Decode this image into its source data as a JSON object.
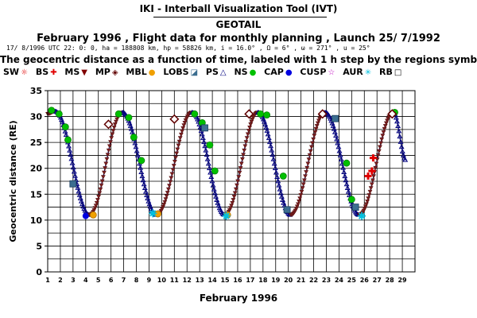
{
  "app_title": "IKI - Interball Visualization Tool (IVT)",
  "satellite": "GEOTAIL",
  "plan_line": "February 1996 ,  Flight data for monthly planning ,   Launch 25/ 7/1992",
  "orbit_line": "17/ 8/1996 UTC 22: 0: 0, ha = 188808 km, hp =  58826 km, i = 16.0° , Ω =   6° , ω = 271° , u =  25°",
  "description": "The geocentric distance as a function of time, labeled with 1 h step by the regions symbols:",
  "legend": [
    {
      "label": "SW",
      "icon": "sun-icon",
      "color": "#e00000",
      "glyph": "☼"
    },
    {
      "label": "BS",
      "icon": "cross-icon",
      "color": "#e00000",
      "glyph": "✚"
    },
    {
      "label": "MS",
      "icon": "triangle-down-icon",
      "color": "#800000",
      "glyph": "▼"
    },
    {
      "label": "MP",
      "icon": "diamond-icon",
      "color": "#600000",
      "glyph": "◈"
    },
    {
      "label": "MBL",
      "icon": "blob-icon",
      "color": "#f0a000",
      "glyph": "●"
    },
    {
      "label": "LOBS",
      "icon": "split-square-icon",
      "color": "#3c6e90",
      "glyph": "◪"
    },
    {
      "label": "PS",
      "icon": "triangle-up-icon",
      "color": "#000080",
      "glyph": "△"
    },
    {
      "label": "NS",
      "icon": "green-blob-icon",
      "color": "#00c000",
      "glyph": "●"
    },
    {
      "label": "CAP",
      "icon": "blue-dot-icon",
      "color": "#0000e0",
      "glyph": "●"
    },
    {
      "label": "CUSP",
      "icon": "star-icon",
      "color": "#c000c0",
      "glyph": "☆"
    },
    {
      "label": "AUR",
      "icon": "asterisk-icon",
      "color": "#00c0e0",
      "glyph": "✳"
    },
    {
      "label": "RB",
      "icon": "square-icon",
      "color": "#000000",
      "glyph": "□"
    }
  ],
  "chart_data": {
    "type": "scatter",
    "title": "",
    "xlabel": "February 1996",
    "ylabel": "Geocentric distance (RE)",
    "xlim": [
      1,
      30
    ],
    "ylim": [
      0,
      35
    ],
    "x_ticks": [
      1,
      2,
      3,
      4,
      5,
      6,
      7,
      8,
      9,
      10,
      11,
      12,
      13,
      14,
      15,
      16,
      17,
      18,
      19,
      20,
      21,
      22,
      23,
      24,
      25,
      26,
      27,
      28,
      29
    ],
    "y_ticks": [
      0,
      5,
      10,
      15,
      20,
      25,
      30,
      35
    ],
    "grid": true,
    "series_curve": {
      "apogees": [
        {
          "x": 1.6,
          "y": 31.0
        },
        {
          "x": 6.9,
          "y": 30.8
        },
        {
          "x": 12.4,
          "y": 30.8
        },
        {
          "x": 17.6,
          "y": 30.8
        },
        {
          "x": 22.9,
          "y": 30.8
        },
        {
          "x": 28.3,
          "y": 30.8
        }
      ],
      "perigees": [
        {
          "x": 4.3,
          "y": 11.0
        },
        {
          "x": 9.6,
          "y": 11.0
        },
        {
          "x": 15.0,
          "y": 11.0
        },
        {
          "x": 20.2,
          "y": 11.0
        },
        {
          "x": 25.6,
          "y": 11.0
        }
      ],
      "end": {
        "x": 29.3,
        "y": 21.5
      },
      "start": {
        "x": 1.0,
        "y": 30.5
      }
    },
    "markers": {
      "NS": [
        {
          "x": 1.3,
          "y": 31.2
        },
        {
          "x": 1.9,
          "y": 30.5
        },
        {
          "x": 2.4,
          "y": 28.0
        },
        {
          "x": 2.6,
          "y": 25.5
        },
        {
          "x": 6.6,
          "y": 30.5
        },
        {
          "x": 7.4,
          "y": 29.8
        },
        {
          "x": 7.8,
          "y": 26.0
        },
        {
          "x": 8.4,
          "y": 21.5
        },
        {
          "x": 12.6,
          "y": 30.5
        },
        {
          "x": 13.2,
          "y": 28.8
        },
        {
          "x": 13.8,
          "y": 24.5
        },
        {
          "x": 14.2,
          "y": 19.5
        },
        {
          "x": 17.8,
          "y": 30.5
        },
        {
          "x": 18.3,
          "y": 30.3
        },
        {
          "x": 19.6,
          "y": 18.5
        },
        {
          "x": 24.6,
          "y": 21.0
        },
        {
          "x": 25.0,
          "y": 14.0
        },
        {
          "x": 28.4,
          "y": 30.8
        }
      ],
      "MP": [
        {
          "x": 5.8,
          "y": 28.5
        },
        {
          "x": 11.0,
          "y": 29.5
        },
        {
          "x": 16.9,
          "y": 30.5
        },
        {
          "x": 22.7,
          "y": 30.5
        },
        {
          "x": 28.2,
          "y": 30.5
        }
      ],
      "LOBS": [
        {
          "x": 3.0,
          "y": 17.0
        },
        {
          "x": 13.4,
          "y": 27.8
        },
        {
          "x": 23.7,
          "y": 29.6
        },
        {
          "x": 19.9,
          "y": 12.0
        },
        {
          "x": 25.3,
          "y": 12.5
        }
      ],
      "MBL": [
        {
          "x": 4.6,
          "y": 11.0
        },
        {
          "x": 9.7,
          "y": 11.2
        },
        {
          "x": 15.2,
          "y": 11.0
        }
      ],
      "AUR": [
        {
          "x": 9.3,
          "y": 11.3
        },
        {
          "x": 15.1,
          "y": 10.8
        },
        {
          "x": 25.8,
          "y": 10.8
        }
      ],
      "CAP": [
        {
          "x": 4.0,
          "y": 10.8
        }
      ],
      "BS": [
        {
          "x": 26.3,
          "y": 18.5
        },
        {
          "x": 26.6,
          "y": 19.5
        },
        {
          "x": 26.7,
          "y": 22.0
        }
      ]
    }
  }
}
